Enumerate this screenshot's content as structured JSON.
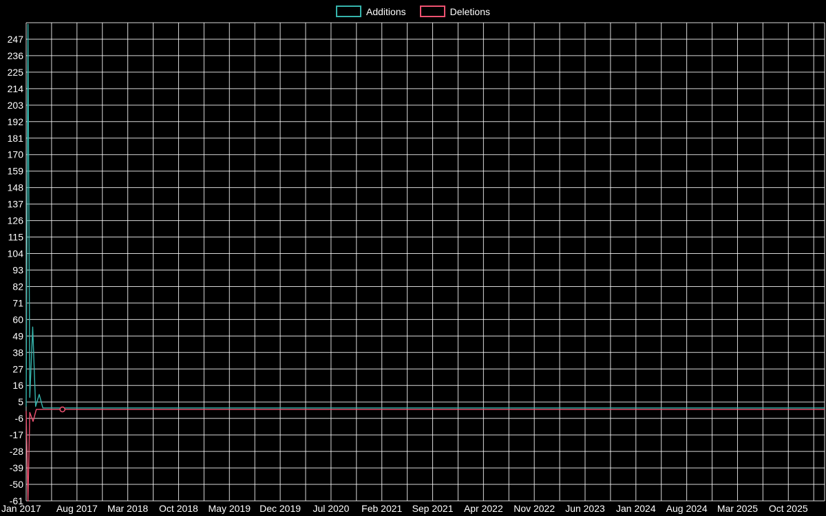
{
  "legend": {
    "items": [
      {
        "label": "Additions",
        "color": "#36b5ad"
      },
      {
        "label": "Deletions",
        "color": "#ef5271"
      }
    ]
  },
  "chart_data": {
    "type": "line",
    "title": "",
    "xlabel": "",
    "ylabel": "",
    "background": "#000000",
    "grid_color": "rgba(255,255,255,0.85)",
    "text_color": "#ffffff",
    "legend_position": "top",
    "grid": true,
    "xlim": [
      0,
      110
    ],
    "ylim": [
      -61,
      258
    ],
    "x_grid_step_months": 3.5,
    "x_tick_months": [
      0,
      7,
      14,
      21,
      28,
      35,
      42,
      49,
      56,
      63,
      70,
      77,
      84,
      91,
      98,
      105
    ],
    "x_tick_labels": [
      "Jan 2017",
      "Aug 2017",
      "Mar 2018",
      "Oct 2018",
      "May 2019",
      "Dec 2019",
      "Jul 2020",
      "Feb 2021",
      "Sep 2021",
      "Apr 2022",
      "Nov 2022",
      "Jun 2023",
      "Jan 2024",
      "Aug 2024",
      "Mar 2025",
      "Oct 2025"
    ],
    "y_ticks": [
      247,
      236,
      225,
      214,
      203,
      192,
      181,
      170,
      159,
      148,
      137,
      126,
      115,
      104,
      93,
      82,
      71,
      60,
      49,
      38,
      27,
      16,
      5,
      -6,
      -17,
      -28,
      -39,
      -50,
      -61
    ],
    "y_grid_extra": [
      258
    ],
    "series": [
      {
        "name": "Additions",
        "color": "#36b5ad",
        "points": [
          [
            0,
            2
          ],
          [
            0.25,
            257
          ],
          [
            0.5,
            8
          ],
          [
            0.9,
            55
          ],
          [
            1.3,
            2
          ],
          [
            1.8,
            10
          ],
          [
            2.3,
            1
          ],
          [
            110,
            1
          ]
        ],
        "markers": []
      },
      {
        "name": "Deletions",
        "color": "#ef5271",
        "points": [
          [
            0,
            -1
          ],
          [
            0.25,
            -61
          ],
          [
            0.5,
            -2
          ],
          [
            0.95,
            -8
          ],
          [
            1.4,
            0
          ],
          [
            110,
            0
          ]
        ],
        "markers": [
          [
            5,
            0
          ]
        ]
      }
    ]
  }
}
